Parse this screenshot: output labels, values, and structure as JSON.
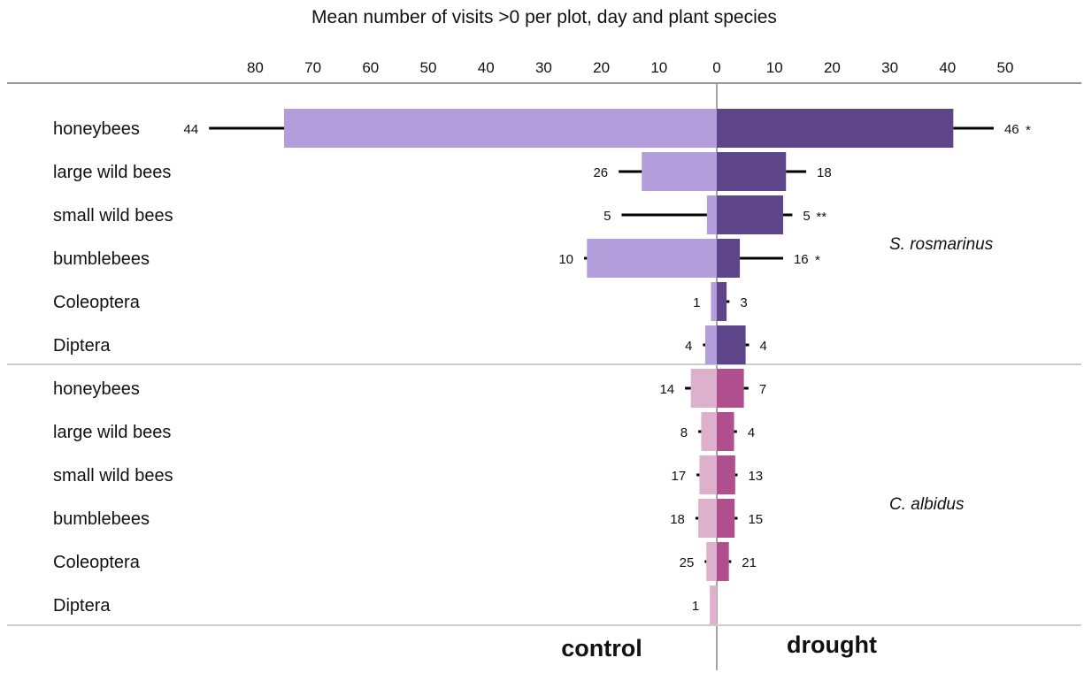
{
  "chart_data": {
    "type": "bar",
    "title": "Mean number of visits >0 per plot, day and plant species",
    "left_label": "control",
    "right_label": "drought",
    "left_ticks": [
      "80",
      "70",
      "60",
      "50",
      "40",
      "30",
      "20",
      "10",
      "0"
    ],
    "right_ticks": [
      "0",
      "10",
      "20",
      "30",
      "40",
      "50"
    ],
    "left_tick_values": [
      80,
      70,
      60,
      50,
      40,
      30,
      20,
      10,
      0
    ],
    "right_tick_values": [
      0,
      10,
      20,
      30,
      40,
      50
    ],
    "groups": [
      {
        "species": "S. rosmarinus",
        "colors": {
          "control": "#b39ddb",
          "drought": "#5e4589"
        },
        "rows": [
          {
            "label": "honeybees",
            "control": {
              "mean": 75,
              "err": 13,
              "n": "44"
            },
            "drought": {
              "mean": 41,
              "err": 7,
              "n": "46",
              "sig": "*"
            }
          },
          {
            "label": "large wild bees",
            "control": {
              "mean": 13,
              "err": 4,
              "n": "26"
            },
            "drought": {
              "mean": 12,
              "err": 3.5,
              "n": "18"
            }
          },
          {
            "label": "small wild bees",
            "control": {
              "mean": 1.7,
              "err": 14.8,
              "n": "5"
            },
            "drought": {
              "mean": 11.5,
              "err": 1.6,
              "n": "5",
              "sig": "**"
            }
          },
          {
            "label": "bumblebees",
            "control": {
              "mean": 22.5,
              "err": 0.5,
              "n": "10"
            },
            "drought": {
              "mean": 4,
              "err": 7.5,
              "n": "16",
              "sig": "*"
            }
          },
          {
            "label": "Coleoptera",
            "control": {
              "mean": 1,
              "err": 0,
              "n": "1"
            },
            "drought": {
              "mean": 1.7,
              "err": 0.5,
              "n": "3"
            }
          },
          {
            "label": "Diptera",
            "control": {
              "mean": 2,
              "err": 0.4,
              "n": "4"
            },
            "drought": {
              "mean": 5,
              "err": 0.6,
              "n": "4"
            }
          }
        ]
      },
      {
        "species": "C. albidus",
        "colors": {
          "control": "#ddb0cc",
          "drought": "#b04f8e"
        },
        "rows": [
          {
            "label": "honeybees",
            "control": {
              "mean": 4.5,
              "err": 1,
              "n": "14"
            },
            "drought": {
              "mean": 4.7,
              "err": 0.8,
              "n": "7"
            }
          },
          {
            "label": "large wild bees",
            "control": {
              "mean": 2.7,
              "err": 0.5,
              "n": "8"
            },
            "drought": {
              "mean": 3,
              "err": 0.5,
              "n": "4"
            }
          },
          {
            "label": "small wild bees",
            "control": {
              "mean": 3,
              "err": 0.5,
              "n": "17"
            },
            "drought": {
              "mean": 3.2,
              "err": 0.4,
              "n": "13"
            }
          },
          {
            "label": "bumblebees",
            "control": {
              "mean": 3.2,
              "err": 0.5,
              "n": "18"
            },
            "drought": {
              "mean": 3.1,
              "err": 0.5,
              "n": "15"
            }
          },
          {
            "label": "Coleoptera",
            "control": {
              "mean": 1.8,
              "err": 0.3,
              "n": "25"
            },
            "drought": {
              "mean": 2.1,
              "err": 0.4,
              "n": "21"
            }
          },
          {
            "label": "Diptera",
            "control": {
              "mean": 1.2,
              "err": 0,
              "n": "1"
            },
            "drought": null
          }
        ]
      }
    ],
    "grid": false
  }
}
